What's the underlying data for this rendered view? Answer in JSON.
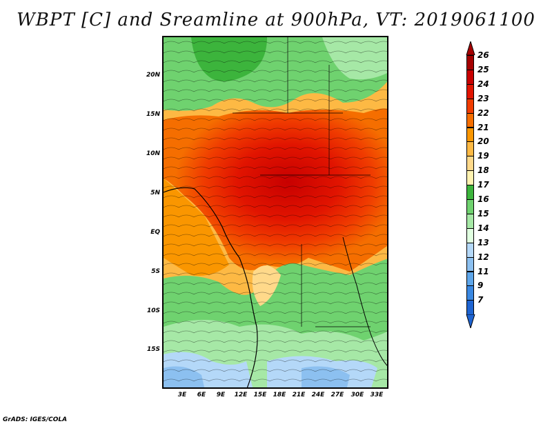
{
  "title": "WBPT [C] and Sreamline at 900hPa, VT: 2019061100",
  "footer": "GrADS: IGES/COLA",
  "map": {
    "lat_labels": [
      "20N",
      "15N",
      "10N",
      "5N",
      "EQ",
      "5S",
      "10S",
      "15S"
    ],
    "lon_labels": [
      "3E",
      "6E",
      "9E",
      "12E",
      "15E",
      "18E",
      "21E",
      "24E",
      "27E",
      "30E",
      "33E"
    ]
  },
  "colorbar": {
    "labels": [
      "26",
      "25",
      "24",
      "23",
      "22",
      "21",
      "20",
      "19",
      "18",
      "17",
      "16",
      "15",
      "14",
      "13",
      "12",
      "11",
      "9",
      "7"
    ],
    "colors": [
      "#a50000",
      "#c80000",
      "#e11400",
      "#f03c00",
      "#f56e00",
      "#fa9600",
      "#fdb944",
      "#ffd98a",
      "#fff2b0",
      "#3cb43c",
      "#6fd26f",
      "#a6e8a6",
      "#e0ffe0",
      "#b4d8f8",
      "#8cc0f0",
      "#5ea6ea",
      "#3a88e2",
      "#1e64d2"
    ]
  }
}
